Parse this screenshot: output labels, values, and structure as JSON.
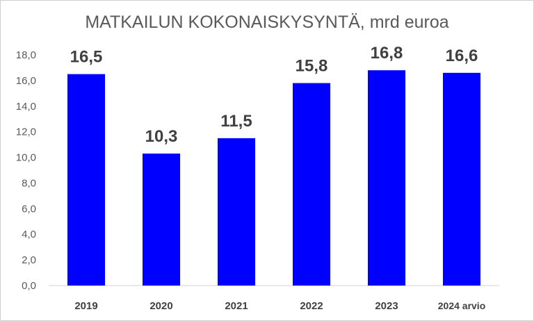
{
  "chart_data": {
    "type": "bar",
    "title": "MATKAILUN KOKONAISKYSYNTÄ, mrd euroa",
    "categories": [
      "2019",
      "2020",
      "2021",
      "2022",
      "2023",
      "2024 arvio"
    ],
    "values": [
      16.5,
      10.3,
      11.5,
      15.8,
      16.8,
      16.6
    ],
    "value_labels": [
      "16,5",
      "10,3",
      "11,5",
      "15,8",
      "16,8",
      "16,6"
    ],
    "y_ticks": [
      "0,0",
      "2,0",
      "4,0",
      "6,0",
      "8,0",
      "10,0",
      "12,0",
      "14,0",
      "16,0",
      "18,0"
    ],
    "ylim": [
      0,
      18
    ],
    "xlabel": "",
    "ylabel": "",
    "grid": false,
    "legend": "none",
    "bar_color": "#0000ff"
  }
}
